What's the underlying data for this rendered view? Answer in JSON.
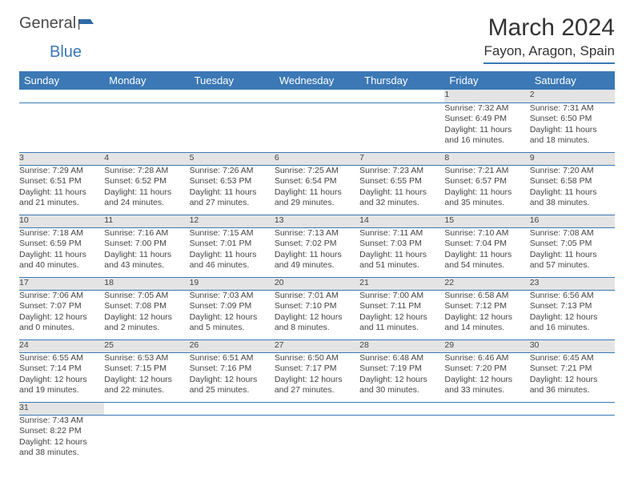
{
  "logo": {
    "general": "General",
    "blue": "Blue"
  },
  "title": "March 2024",
  "location": "Fayon, Aragon, Spain",
  "weekdays": [
    "Sunday",
    "Monday",
    "Tuesday",
    "Wednesday",
    "Thursday",
    "Friday",
    "Saturday"
  ],
  "colors": {
    "header_bg": "#3b78b5",
    "header_fg": "#ffffff",
    "daynum_bg": "#e4e4e4",
    "rule": "#3b78b5"
  },
  "weeks": [
    [
      null,
      null,
      null,
      null,
      null,
      {
        "n": "1",
        "sr": "Sunrise: 7:32 AM",
        "ss": "Sunset: 6:49 PM",
        "d1": "Daylight: 11 hours",
        "d2": "and 16 minutes."
      },
      {
        "n": "2",
        "sr": "Sunrise: 7:31 AM",
        "ss": "Sunset: 6:50 PM",
        "d1": "Daylight: 11 hours",
        "d2": "and 18 minutes."
      }
    ],
    [
      {
        "n": "3",
        "sr": "Sunrise: 7:29 AM",
        "ss": "Sunset: 6:51 PM",
        "d1": "Daylight: 11 hours",
        "d2": "and 21 minutes."
      },
      {
        "n": "4",
        "sr": "Sunrise: 7:28 AM",
        "ss": "Sunset: 6:52 PM",
        "d1": "Daylight: 11 hours",
        "d2": "and 24 minutes."
      },
      {
        "n": "5",
        "sr": "Sunrise: 7:26 AM",
        "ss": "Sunset: 6:53 PM",
        "d1": "Daylight: 11 hours",
        "d2": "and 27 minutes."
      },
      {
        "n": "6",
        "sr": "Sunrise: 7:25 AM",
        "ss": "Sunset: 6:54 PM",
        "d1": "Daylight: 11 hours",
        "d2": "and 29 minutes."
      },
      {
        "n": "7",
        "sr": "Sunrise: 7:23 AM",
        "ss": "Sunset: 6:55 PM",
        "d1": "Daylight: 11 hours",
        "d2": "and 32 minutes."
      },
      {
        "n": "8",
        "sr": "Sunrise: 7:21 AM",
        "ss": "Sunset: 6:57 PM",
        "d1": "Daylight: 11 hours",
        "d2": "and 35 minutes."
      },
      {
        "n": "9",
        "sr": "Sunrise: 7:20 AM",
        "ss": "Sunset: 6:58 PM",
        "d1": "Daylight: 11 hours",
        "d2": "and 38 minutes."
      }
    ],
    [
      {
        "n": "10",
        "sr": "Sunrise: 7:18 AM",
        "ss": "Sunset: 6:59 PM",
        "d1": "Daylight: 11 hours",
        "d2": "and 40 minutes."
      },
      {
        "n": "11",
        "sr": "Sunrise: 7:16 AM",
        "ss": "Sunset: 7:00 PM",
        "d1": "Daylight: 11 hours",
        "d2": "and 43 minutes."
      },
      {
        "n": "12",
        "sr": "Sunrise: 7:15 AM",
        "ss": "Sunset: 7:01 PM",
        "d1": "Daylight: 11 hours",
        "d2": "and 46 minutes."
      },
      {
        "n": "13",
        "sr": "Sunrise: 7:13 AM",
        "ss": "Sunset: 7:02 PM",
        "d1": "Daylight: 11 hours",
        "d2": "and 49 minutes."
      },
      {
        "n": "14",
        "sr": "Sunrise: 7:11 AM",
        "ss": "Sunset: 7:03 PM",
        "d1": "Daylight: 11 hours",
        "d2": "and 51 minutes."
      },
      {
        "n": "15",
        "sr": "Sunrise: 7:10 AM",
        "ss": "Sunset: 7:04 PM",
        "d1": "Daylight: 11 hours",
        "d2": "and 54 minutes."
      },
      {
        "n": "16",
        "sr": "Sunrise: 7:08 AM",
        "ss": "Sunset: 7:05 PM",
        "d1": "Daylight: 11 hours",
        "d2": "and 57 minutes."
      }
    ],
    [
      {
        "n": "17",
        "sr": "Sunrise: 7:06 AM",
        "ss": "Sunset: 7:07 PM",
        "d1": "Daylight: 12 hours",
        "d2": "and 0 minutes."
      },
      {
        "n": "18",
        "sr": "Sunrise: 7:05 AM",
        "ss": "Sunset: 7:08 PM",
        "d1": "Daylight: 12 hours",
        "d2": "and 2 minutes."
      },
      {
        "n": "19",
        "sr": "Sunrise: 7:03 AM",
        "ss": "Sunset: 7:09 PM",
        "d1": "Daylight: 12 hours",
        "d2": "and 5 minutes."
      },
      {
        "n": "20",
        "sr": "Sunrise: 7:01 AM",
        "ss": "Sunset: 7:10 PM",
        "d1": "Daylight: 12 hours",
        "d2": "and 8 minutes."
      },
      {
        "n": "21",
        "sr": "Sunrise: 7:00 AM",
        "ss": "Sunset: 7:11 PM",
        "d1": "Daylight: 12 hours",
        "d2": "and 11 minutes."
      },
      {
        "n": "22",
        "sr": "Sunrise: 6:58 AM",
        "ss": "Sunset: 7:12 PM",
        "d1": "Daylight: 12 hours",
        "d2": "and 14 minutes."
      },
      {
        "n": "23",
        "sr": "Sunrise: 6:56 AM",
        "ss": "Sunset: 7:13 PM",
        "d1": "Daylight: 12 hours",
        "d2": "and 16 minutes."
      }
    ],
    [
      {
        "n": "24",
        "sr": "Sunrise: 6:55 AM",
        "ss": "Sunset: 7:14 PM",
        "d1": "Daylight: 12 hours",
        "d2": "and 19 minutes."
      },
      {
        "n": "25",
        "sr": "Sunrise: 6:53 AM",
        "ss": "Sunset: 7:15 PM",
        "d1": "Daylight: 12 hours",
        "d2": "and 22 minutes."
      },
      {
        "n": "26",
        "sr": "Sunrise: 6:51 AM",
        "ss": "Sunset: 7:16 PM",
        "d1": "Daylight: 12 hours",
        "d2": "and 25 minutes."
      },
      {
        "n": "27",
        "sr": "Sunrise: 6:50 AM",
        "ss": "Sunset: 7:17 PM",
        "d1": "Daylight: 12 hours",
        "d2": "and 27 minutes."
      },
      {
        "n": "28",
        "sr": "Sunrise: 6:48 AM",
        "ss": "Sunset: 7:19 PM",
        "d1": "Daylight: 12 hours",
        "d2": "and 30 minutes."
      },
      {
        "n": "29",
        "sr": "Sunrise: 6:46 AM",
        "ss": "Sunset: 7:20 PM",
        "d1": "Daylight: 12 hours",
        "d2": "and 33 minutes."
      },
      {
        "n": "30",
        "sr": "Sunrise: 6:45 AM",
        "ss": "Sunset: 7:21 PM",
        "d1": "Daylight: 12 hours",
        "d2": "and 36 minutes."
      }
    ],
    [
      {
        "n": "31",
        "sr": "Sunrise: 7:43 AM",
        "ss": "Sunset: 8:22 PM",
        "d1": "Daylight: 12 hours",
        "d2": "and 38 minutes."
      },
      null,
      null,
      null,
      null,
      null,
      null
    ]
  ]
}
